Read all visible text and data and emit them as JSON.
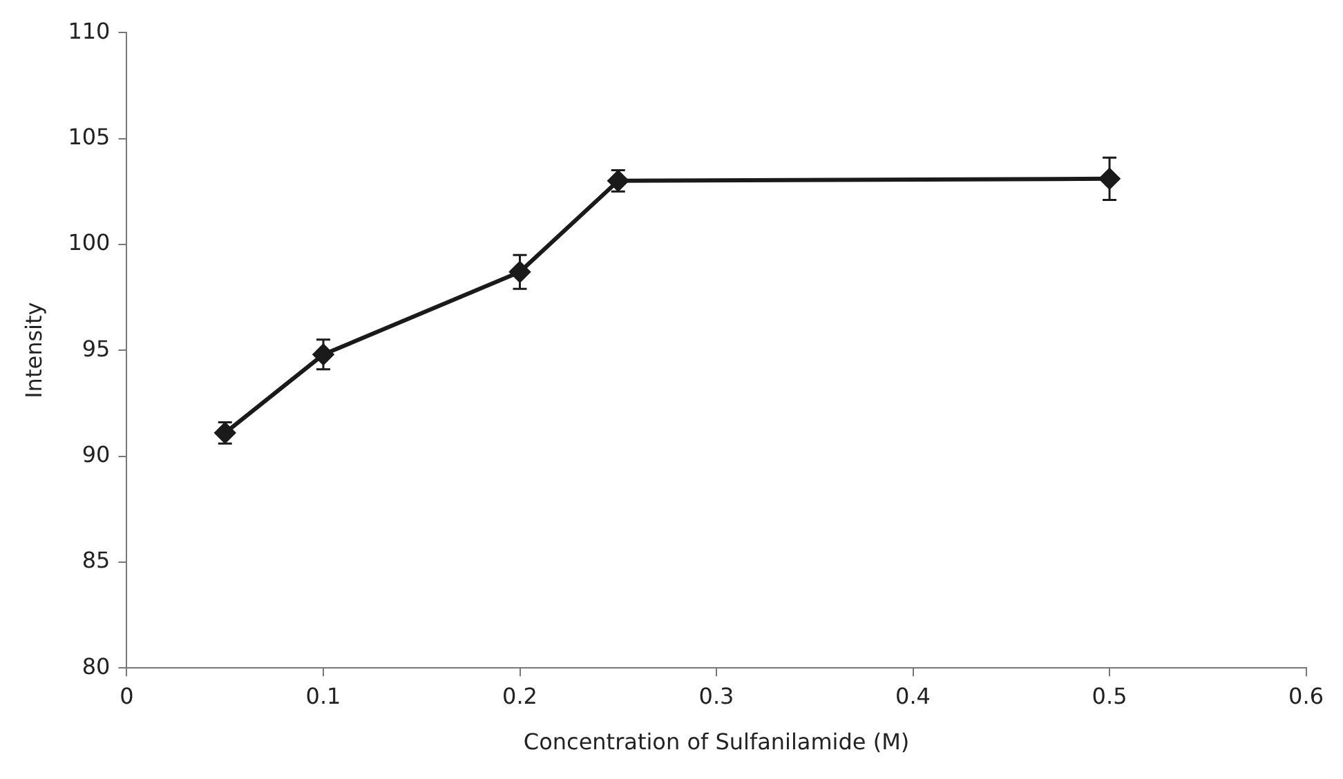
{
  "chart_data": {
    "type": "line",
    "xlabel": "Concentration of Sulfanilamide (M)",
    "ylabel": "Intensity",
    "x": [
      0.05,
      0.1,
      0.2,
      0.25,
      0.5
    ],
    "series": [
      {
        "color": "#1a1a1a",
        "values": [
          91.1,
          94.8,
          98.7,
          103.0,
          103.1
        ],
        "errors": [
          0.5,
          0.7,
          0.8,
          0.5,
          1.0
        ]
      }
    ],
    "xlim": [
      0,
      0.6
    ],
    "xticks": [
      0,
      0.1,
      0.2,
      0.3,
      0.4,
      0.5,
      0.6
    ],
    "ylim": [
      80,
      110
    ],
    "yticks": [
      80,
      85,
      90,
      95,
      100,
      105,
      110
    ],
    "grid": false,
    "legend": false,
    "marker": "diamond",
    "line_style": "solid"
  }
}
